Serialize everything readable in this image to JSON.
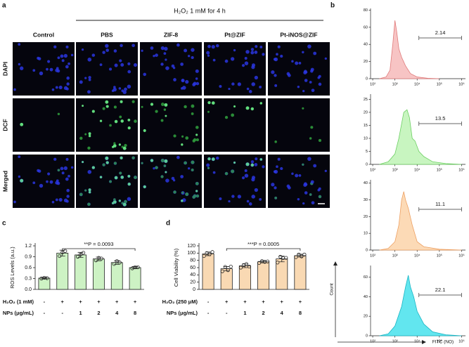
{
  "panel_labels": [
    "a",
    "b",
    "c",
    "d"
  ],
  "microscopy": {
    "header": "H₂O₂ 1 mM for 4 h",
    "columns": [
      "Control",
      "PBS",
      "ZIF-8",
      "Pt@ZIF",
      "Pt-iNOS@ZIF"
    ],
    "rows": [
      "DAPI",
      "DCF",
      "Merged"
    ]
  },
  "flow_axes": {
    "xlabel": "FITC (NO)",
    "ylabel": "Count"
  },
  "chart_data": [
    {
      "type": "bar",
      "ylabel": "ROS Levels (a.u.)",
      "color": "#cdf2c4",
      "edge": "#222",
      "values": [
        0.31,
        1.0,
        0.95,
        0.84,
        0.74,
        0.6
      ],
      "errors": [
        0.02,
        0.08,
        0.07,
        0.05,
        0.05,
        0.03
      ],
      "points": [
        [
          0.3,
          0.32,
          0.31
        ],
        [
          0.92,
          1.02,
          1.06
        ],
        [
          0.9,
          0.96,
          1.01
        ],
        [
          0.8,
          0.87,
          0.85
        ],
        [
          0.7,
          0.78,
          0.74
        ],
        [
          0.58,
          0.61,
          0.61
        ]
      ],
      "ylim": [
        0,
        1.2
      ],
      "yticks": [
        {
          "value": 0,
          "label": "0.0"
        },
        0.3,
        0.6,
        0.9,
        1.2
      ],
      "annotation": "**P = 0.0093",
      "x_table": {
        "rows": [
          {
            "label": "H₂O₂ (1 mM)",
            "cells": [
              "-",
              "+",
              "+",
              "+",
              "+",
              "+"
            ]
          },
          {
            "label": "NPs (μg/mL)",
            "cells": [
              "-",
              "-",
              "1",
              "2",
              "4",
              "8"
            ]
          }
        ]
      }
    },
    {
      "type": "bar",
      "ylabel": "Cell Viability (%)",
      "color": "#f9d9b3",
      "edge": "#222",
      "values": [
        98,
        57,
        65,
        76,
        84,
        93
      ],
      "errors": [
        5,
        6,
        5,
        3,
        8,
        4
      ],
      "points": [
        [
          92,
          100,
          97,
          103
        ],
        [
          50,
          62,
          53,
          63
        ],
        [
          60,
          67,
          70,
          63
        ],
        [
          73,
          78,
          76,
          77
        ],
        [
          74,
          90,
          86,
          87
        ],
        [
          89,
          96,
          91,
          96
        ]
      ],
      "ylim": [
        0,
        120
      ],
      "yticks": [
        0,
        20,
        40,
        60,
        80,
        100,
        120
      ],
      "annotation": "***P = 0.0005",
      "x_table": {
        "rows": [
          {
            "label": "H₂O₂ (250 μM)",
            "cells": [
              "-",
              "+",
              "+",
              "+",
              "+",
              "+"
            ]
          },
          {
            "label": "NPs (μg/mL)",
            "cells": [
              "-",
              "-",
              "1",
              "2",
              "4",
              "8"
            ]
          }
        ]
      }
    },
    {
      "type": "area",
      "log_x": true,
      "color": "#f7c4c4",
      "edge": "#e07a7a",
      "x": [
        200,
        400,
        600,
        800,
        1000,
        1200,
        1500,
        2000,
        3000,
        5000,
        10000,
        30000,
        100000
      ],
      "values": [
        0,
        2,
        10,
        40,
        68,
        55,
        35,
        25,
        15,
        6,
        2,
        0.5,
        0
      ],
      "xlim": [
        80,
        1500000
      ],
      "xticks": [
        {
          "value": 100,
          "label": "10²"
        },
        {
          "value": 1000,
          "label": "10³"
        },
        {
          "value": 10000,
          "label": "10⁴"
        },
        {
          "value": 100000,
          "label": "10⁵"
        },
        {
          "value": 1000000,
          "label": "10⁶"
        }
      ],
      "ylim": [
        0,
        82
      ],
      "yticks": [
        0,
        20,
        40,
        60,
        80
      ],
      "gate_range": [
        12000,
        1000000
      ],
      "gate_value": 2.14
    },
    {
      "type": "area",
      "log_x": true,
      "color": "#c8f5c0",
      "edge": "#6ccf62",
      "x": [
        200,
        500,
        1000,
        1500,
        2500,
        3500,
        4500,
        6000,
        8000,
        12000,
        20000,
        50000,
        200000,
        1000000
      ],
      "values": [
        0,
        1,
        4,
        10,
        20,
        21,
        18,
        10,
        9,
        5,
        3,
        1,
        0.3,
        0
      ],
      "xlim": [
        80,
        1500000
      ],
      "xticks": [
        {
          "value": 100,
          "label": "10²"
        },
        {
          "value": 1000,
          "label": "10³"
        },
        {
          "value": 10000,
          "label": "10⁴"
        },
        {
          "value": 100000,
          "label": "10⁵"
        },
        {
          "value": 1000000,
          "label": "10⁶"
        }
      ],
      "ylim": [
        0,
        27
      ],
      "yticks": [
        0,
        5,
        10,
        15,
        20,
        25
      ],
      "gate_range": [
        12000,
        1000000
      ],
      "gate_value": 13.5
    },
    {
      "type": "area",
      "log_x": true,
      "color": "#fcdab6",
      "edge": "#eda062",
      "x": [
        200,
        500,
        1000,
        1500,
        2000,
        2500,
        3000,
        4000,
        6000,
        10000,
        20000,
        100000,
        1000000
      ],
      "values": [
        0,
        1,
        5,
        15,
        30,
        35,
        30,
        25,
        15,
        5,
        2,
        0.5,
        0
      ],
      "xlim": [
        80,
        1500000
      ],
      "xticks": [
        {
          "value": 100,
          "label": "10²"
        },
        {
          "value": 1000,
          "label": "10³"
        },
        {
          "value": 10000,
          "label": "10⁴"
        },
        {
          "value": 100000,
          "label": "10⁵"
        },
        {
          "value": 1000000,
          "label": "10⁶"
        }
      ],
      "ylim": [
        0,
        42
      ],
      "yticks": [
        0,
        10,
        20,
        30,
        40
      ],
      "gate_range": [
        12000,
        1000000
      ],
      "gate_value": 11.1
    },
    {
      "type": "area",
      "log_x": true,
      "color": "#62e6ef",
      "edge": "#1ab5c4",
      "x": [
        200,
        500,
        1000,
        2000,
        3000,
        4000,
        5000,
        7000,
        10000,
        20000,
        50000,
        200000,
        1000000
      ],
      "values": [
        0,
        2,
        10,
        30,
        50,
        62,
        50,
        40,
        25,
        12,
        4,
        1,
        0
      ],
      "xlim": [
        80,
        1500000
      ],
      "xticks": [
        {
          "value": 100,
          "label": "10²"
        },
        {
          "value": 1000,
          "label": "10³"
        },
        {
          "value": 10000,
          "label": "10⁴"
        },
        {
          "value": 100000,
          "label": "10⁵"
        },
        {
          "value": 1000000,
          "label": "10⁶"
        }
      ],
      "ylim": [
        0,
        72
      ],
      "yticks": [
        0,
        20,
        40,
        60
      ],
      "gate_range": [
        12000,
        1000000
      ],
      "gate_value": 22.1
    }
  ]
}
